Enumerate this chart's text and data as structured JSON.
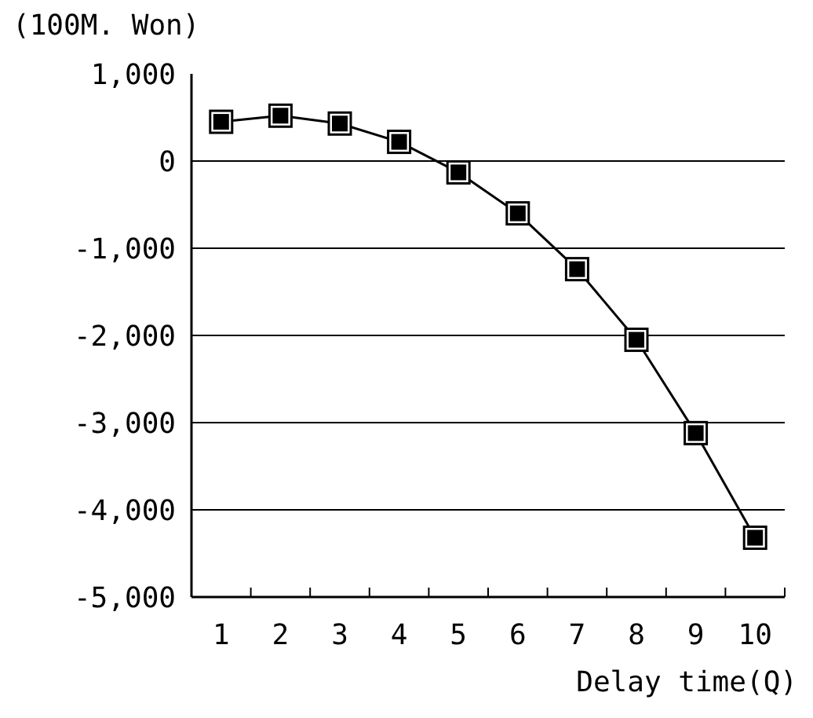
{
  "chart_data": {
    "type": "line",
    "xlabel": "Delay time(Q)",
    "ylabel": "(100M. Won)",
    "categories": [
      "1",
      "2",
      "3",
      "4",
      "5",
      "6",
      "7",
      "8",
      "9",
      "10"
    ],
    "series": [
      {
        "color": "#000000",
        "values": [
          450,
          520,
          430,
          220,
          -130,
          -600,
          -1240,
          -2050,
          -3120,
          -4320
        ]
      }
    ],
    "ylim": [
      -5000,
      1000
    ],
    "yticks": [
      {
        "value": -5000,
        "label": "-5,000"
      },
      {
        "value": -4000,
        "label": "-4,000"
      },
      {
        "value": -3000,
        "label": "-3,000"
      },
      {
        "value": -2000,
        "label": "-2,000"
      },
      {
        "value": -1000,
        "label": "-1,000"
      },
      0,
      {
        "value": 1000,
        "label": "1,000"
      }
    ],
    "grid": "y",
    "marker": "square",
    "line_style": "solid"
  }
}
